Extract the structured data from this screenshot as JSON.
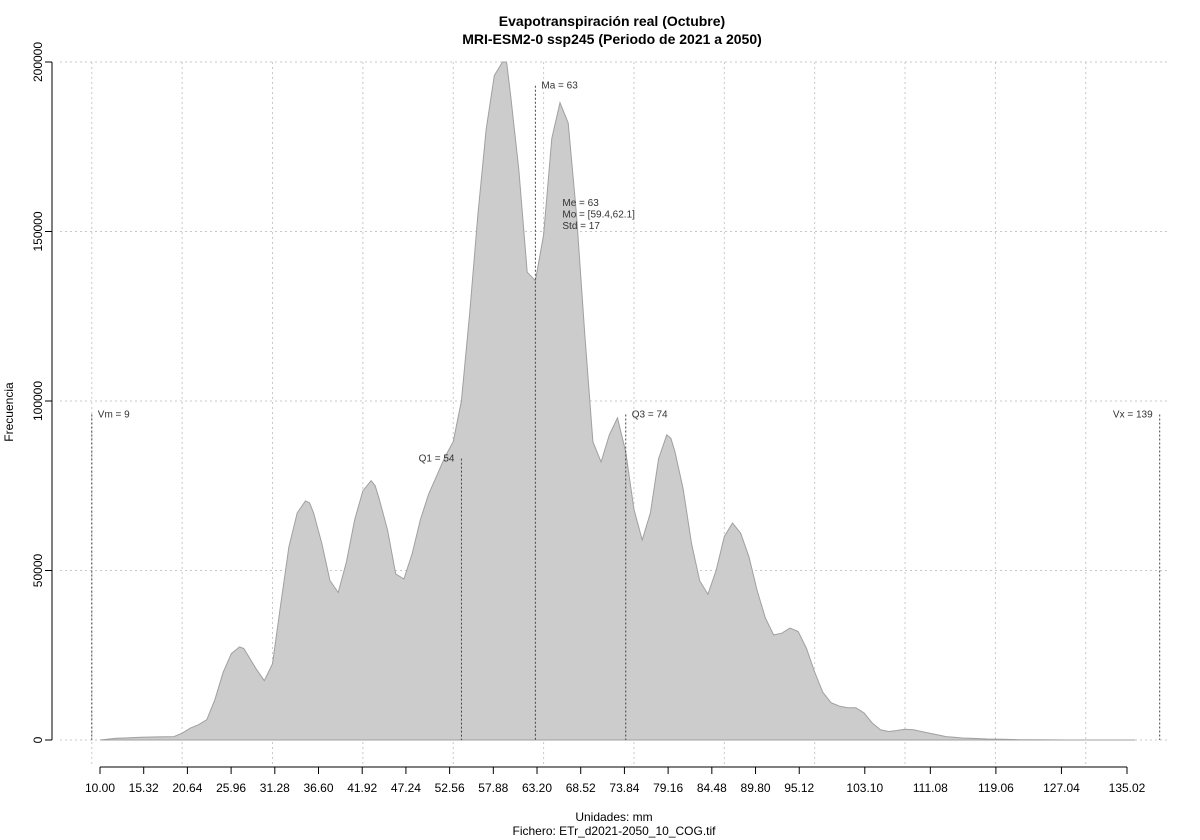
{
  "chart_data": {
    "type": "area",
    "title": "Evapotranspiración real (Octubre)",
    "subtitle": "MRI-ESM2-0 ssp245 (Periodo de 2021 a 2050)",
    "xlabel": "Unidades: mm",
    "ylabel": "Frecuencia",
    "caption": "Fichero: ETr_d2021-2050_10_COG.tif",
    "xlim": [
      3,
      141
    ],
    "ylim": [
      0,
      200000
    ],
    "x_ticks": [
      10.0,
      15.32,
      20.64,
      25.96,
      31.28,
      36.6,
      41.92,
      47.24,
      52.56,
      57.88,
      63.2,
      68.52,
      73.84,
      79.16,
      84.48,
      89.8,
      95.12,
      103.1,
      111.08,
      119.06,
      127.04,
      135.02
    ],
    "x_tick_labels": [
      "10.00",
      "15.32",
      "20.64",
      "25.96",
      "31.28",
      "36.60",
      "41.92",
      "47.24",
      "52.56",
      "57.88",
      "63.20",
      "68.52",
      "73.84",
      "79.16",
      "84.48",
      "89.80",
      "95.12",
      "103.10",
      "111.08",
      "119.06",
      "127.04",
      "135.02"
    ],
    "y_ticks": [
      0,
      50000,
      100000,
      150000,
      200000
    ],
    "y_tick_labels": [
      "0",
      "50000",
      "100000",
      "150000",
      "200000"
    ],
    "x_grid": [
      9,
      20,
      31,
      42,
      53,
      64,
      75,
      86,
      97,
      108,
      119,
      130
    ],
    "grid": true,
    "fill_color": "#cccccc",
    "line_color": "#a0a0a0",
    "x": [
      10,
      12,
      15,
      17,
      19,
      20,
      21,
      22,
      23,
      24,
      25,
      26,
      27,
      27.5,
      28,
      29,
      30,
      31,
      32,
      33,
      34,
      35,
      35.5,
      36,
      37,
      38,
      39,
      40,
      41,
      42,
      43,
      43.5,
      44,
      45,
      46,
      47,
      48,
      49,
      50,
      51,
      52,
      53,
      54,
      55,
      56,
      57,
      58,
      59,
      59.5,
      60,
      61,
      62,
      63,
      64,
      65,
      66,
      67,
      68,
      69,
      70,
      71,
      72,
      73,
      74,
      75,
      76,
      77,
      78,
      79,
      79.5,
      80,
      81,
      82,
      83,
      84,
      85,
      86,
      87,
      88,
      89,
      90,
      91,
      92,
      93,
      94,
      95,
      96,
      97,
      98,
      99,
      100,
      101,
      102,
      103,
      104,
      105,
      106,
      107,
      108,
      109,
      110,
      111,
      112,
      113,
      114,
      115,
      116,
      117,
      118,
      120,
      122,
      124,
      126,
      128,
      130,
      132,
      134,
      136
    ],
    "y": [
      0,
      500,
      800,
      900,
      1000,
      2000,
      3500,
      4500,
      6000,
      12000,
      20000,
      25500,
      27500,
      27000,
      25000,
      21000,
      17500,
      22500,
      40000,
      57000,
      67000,
      70500,
      70000,
      67000,
      58000,
      47000,
      43500,
      52500,
      65000,
      73500,
      76500,
      75000,
      71000,
      62000,
      49000,
      47500,
      55000,
      65000,
      72500,
      78000,
      83500,
      88000,
      100000,
      126000,
      155000,
      180000,
      196000,
      203000,
      201000,
      190000,
      168000,
      138000,
      135500,
      149000,
      177500,
      188000,
      182000,
      155000,
      120000,
      88000,
      82000,
      90000,
      95000,
      85000,
      68000,
      59000,
      67000,
      83000,
      90000,
      89000,
      85000,
      74000,
      58000,
      47000,
      43000,
      50000,
      60000,
      64000,
      61000,
      54000,
      44000,
      36000,
      31000,
      31500,
      33000,
      32000,
      27000,
      20000,
      14000,
      11000,
      10000,
      9500,
      9500,
      8000,
      5000,
      3000,
      2500,
      2800,
      3200,
      3000,
      2500,
      2000,
      1500,
      1000,
      800,
      600,
      500,
      400,
      300,
      200,
      100,
      50,
      20,
      10,
      0,
      0,
      0,
      0
    ],
    "annotations": [
      {
        "label": "Vm = 9",
        "x": 9,
        "y": 96000
      },
      {
        "label": "Q1 = 54",
        "x": 54,
        "y": 83000
      },
      {
        "label": "Ma = 63",
        "x": 63,
        "y": 193000
      },
      {
        "label": "Q3 = 74",
        "x": 74,
        "y": 96000
      },
      {
        "label": "Vx = 139",
        "x": 139,
        "y": 96000
      }
    ],
    "stats_text": [
      "Me = 63",
      "Mo = [59.4,62.1]",
      "Std = 17"
    ]
  }
}
